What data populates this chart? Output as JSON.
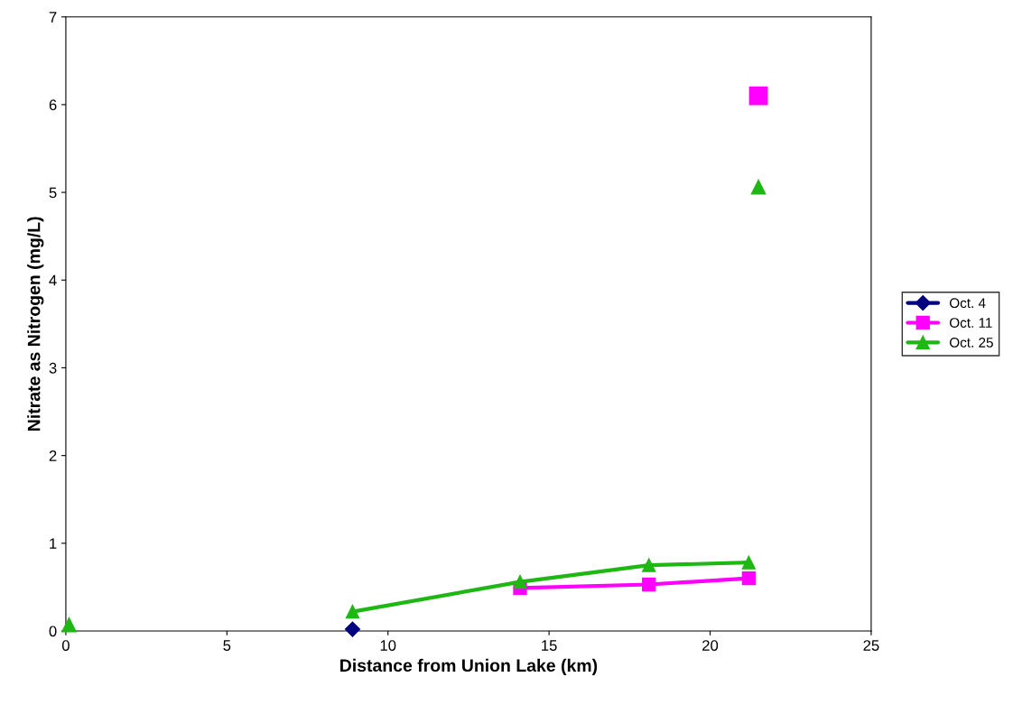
{
  "chart_data": {
    "type": "line",
    "xlabel": "Distance from Union Lake (km)",
    "ylabel": "Nitrate as Nitrogen (mg/L)",
    "xlim": [
      0,
      25
    ],
    "xticks": [
      0,
      5,
      10,
      15,
      20,
      25
    ],
    "ylim": [
      0,
      7
    ],
    "yticks": [
      0,
      1,
      2,
      3,
      4,
      5,
      6,
      7
    ],
    "grid": false,
    "legend": "right",
    "series": [
      {
        "name": "Oct. 4",
        "color": "#000080",
        "marker": "diamond",
        "x": [
          8.9
        ],
        "values": [
          0.02
        ]
      },
      {
        "name": "Oct. 11",
        "color": "#ff00ff",
        "marker": "square",
        "x": [
          14.1,
          18.1,
          21.2
        ],
        "values": [
          0.49,
          0.53,
          0.6
        ]
      },
      {
        "name": "Oct. 25",
        "color": "#1fb714",
        "marker": "triangle",
        "x": [
          8.9,
          14.1,
          18.1,
          21.2
        ],
        "values": [
          0.22,
          0.56,
          0.75,
          0.78
        ]
      },
      {
        "type": "scatter",
        "color": "#ff00ff",
        "marker": "square",
        "x": [
          21.5
        ],
        "values": [
          6.1
        ]
      },
      {
        "type": "scatter",
        "color": "#1fb714",
        "marker": "triangle",
        "x": [
          0.1,
          21.5
        ],
        "values": [
          0.07,
          5.06
        ]
      }
    ]
  }
}
